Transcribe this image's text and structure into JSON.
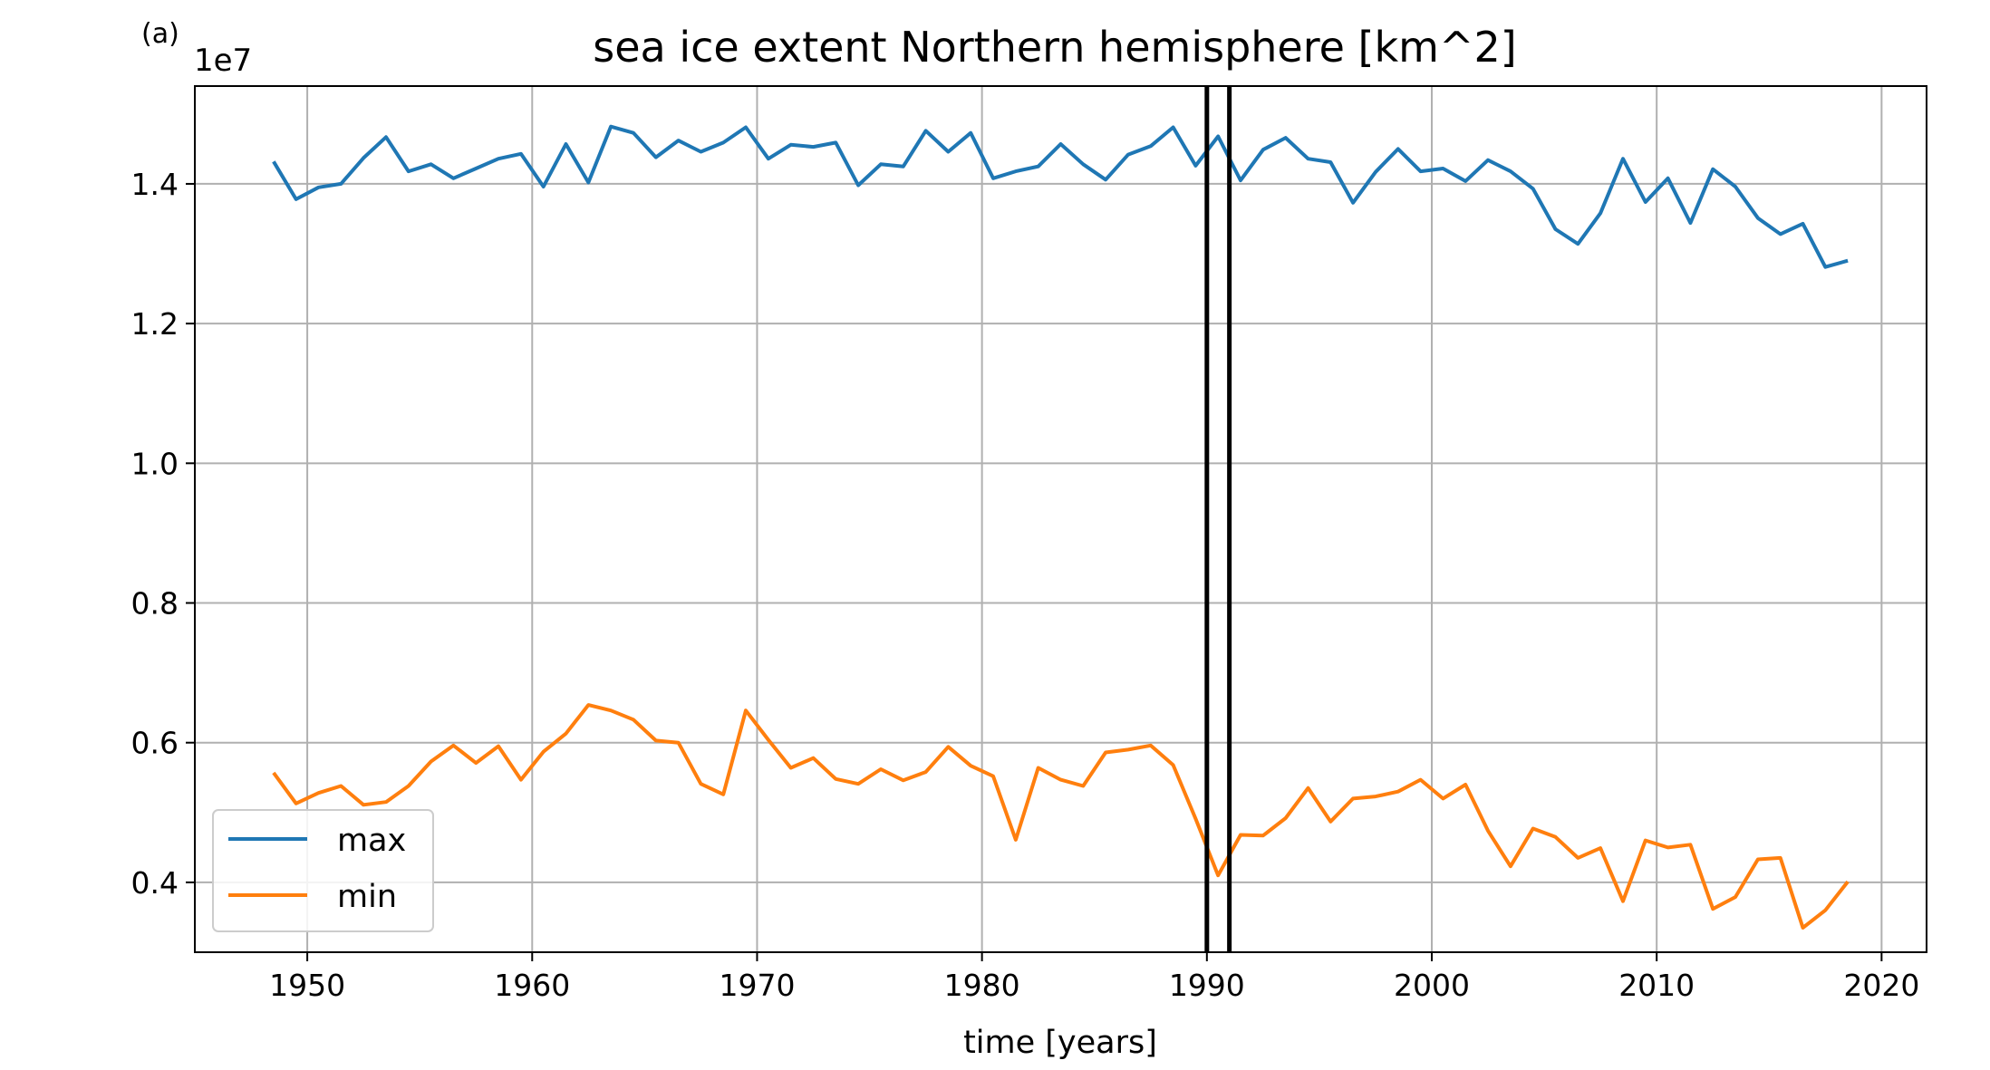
{
  "panel_label": "(a)",
  "chart_data": {
    "type": "line",
    "title": "sea ice extent Northern hemisphere [km^2]",
    "xlabel": "time [years]",
    "ylabel": "",
    "y_offset_label": "1e7",
    "xlim": [
      1945,
      2022
    ],
    "ylim": [
      0.3,
      1.54
    ],
    "x_ticks": [
      1950,
      1960,
      1970,
      1980,
      1990,
      2000,
      2010,
      2020
    ],
    "x_tick_labels": [
      "1950",
      "1960",
      "1970",
      "1980",
      "1990",
      "2000",
      "2010",
      "2020"
    ],
    "y_ticks": [
      0.4,
      0.6,
      0.8,
      1.0,
      1.2,
      1.4
    ],
    "y_tick_labels": [
      "0.4",
      "0.6",
      "0.8",
      "1.0",
      "1.2",
      "1.4"
    ],
    "grid": true,
    "legend_position": "lower-left",
    "vertical_lines": [
      1990,
      1991
    ],
    "x": [
      1948.5,
      1949.5,
      1950.5,
      1951.5,
      1952.5,
      1953.5,
      1954.5,
      1955.5,
      1956.5,
      1957.5,
      1958.5,
      1959.5,
      1960.5,
      1961.5,
      1962.5,
      1963.5,
      1964.5,
      1965.5,
      1966.5,
      1967.5,
      1968.5,
      1969.5,
      1970.5,
      1971.5,
      1972.5,
      1973.5,
      1974.5,
      1975.5,
      1976.5,
      1977.5,
      1978.5,
      1979.5,
      1980.5,
      1981.5,
      1982.5,
      1983.5,
      1984.5,
      1985.5,
      1986.5,
      1987.5,
      1988.5,
      1989.5,
      1990.5,
      1991.5,
      1992.5,
      1993.5,
      1994.5,
      1995.5,
      1996.5,
      1997.5,
      1998.5,
      1999.5,
      2000.5,
      2001.5,
      2002.5,
      2003.5,
      2004.5,
      2005.5,
      2006.5,
      2007.5,
      2008.5,
      2009.5,
      2010.5,
      2011.5,
      2012.5,
      2013.5,
      2014.5,
      2015.5,
      2016.5,
      2017.5,
      2018.5
    ],
    "series": [
      {
        "name": "max",
        "color": "#1f77b4",
        "values": [
          1.432,
          1.378,
          1.395,
          1.4,
          1.437,
          1.467,
          1.418,
          1.428,
          1.408,
          1.422,
          1.436,
          1.443,
          1.396,
          1.457,
          1.402,
          1.482,
          1.473,
          1.438,
          1.462,
          1.446,
          1.459,
          1.481,
          1.436,
          1.456,
          1.453,
          1.459,
          1.398,
          1.428,
          1.425,
          1.476,
          1.446,
          1.473,
          1.408,
          1.418,
          1.425,
          1.457,
          1.428,
          1.406,
          1.442,
          1.454,
          1.481,
          1.426,
          1.468,
          1.405,
          1.449,
          1.466,
          1.436,
          1.431,
          1.373,
          1.417,
          1.45,
          1.418,
          1.422,
          1.404,
          1.434,
          1.418,
          1.393,
          1.335,
          1.314,
          1.358,
          1.436,
          1.374,
          1.408,
          1.344,
          1.421,
          1.396,
          1.351,
          1.328,
          1.343,
          1.281,
          1.29
        ]
      },
      {
        "name": "min",
        "color": "#ff7f0e",
        "values": [
          0.557,
          0.513,
          0.528,
          0.538,
          0.511,
          0.515,
          0.538,
          0.573,
          0.596,
          0.571,
          0.595,
          0.547,
          0.587,
          0.613,
          0.654,
          0.646,
          0.633,
          0.603,
          0.6,
          0.541,
          0.526,
          0.646,
          0.604,
          0.564,
          0.578,
          0.548,
          0.541,
          0.562,
          0.546,
          0.558,
          0.594,
          0.567,
          0.552,
          0.461,
          0.564,
          0.547,
          0.538,
          0.586,
          0.59,
          0.596,
          0.568,
          0.491,
          0.41,
          0.468,
          0.467,
          0.492,
          0.535,
          0.487,
          0.52,
          0.523,
          0.53,
          0.547,
          0.52,
          0.54,
          0.474,
          0.423,
          0.477,
          0.465,
          0.435,
          0.449,
          0.373,
          0.46,
          0.45,
          0.454,
          0.362,
          0.379,
          0.433,
          0.435,
          0.335,
          0.36,
          0.401
        ]
      }
    ]
  }
}
